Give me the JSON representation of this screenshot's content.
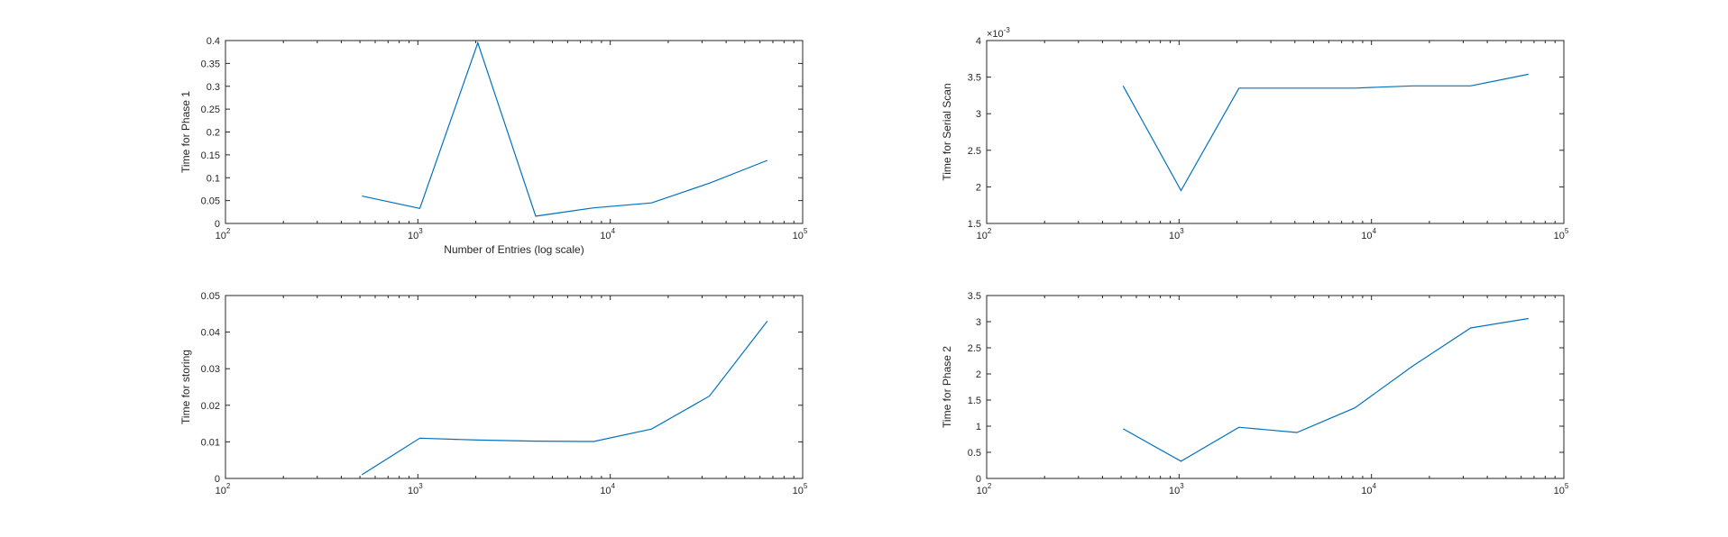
{
  "chart_data": [
    {
      "type": "line",
      "xscale": "log",
      "xlim": [
        100,
        100000
      ],
      "ylim": [
        0,
        0.4
      ],
      "xlabel": "Number of Entries (log scale)",
      "ylabel": "Time for Phase 1",
      "line_color": "#0072BD",
      "x": [
        512,
        1024,
        2048,
        4096,
        8192,
        16384,
        32768,
        65536
      ],
      "y": [
        0.06,
        0.033,
        0.395,
        0.016,
        0.034,
        0.045,
        0.088,
        0.138
      ],
      "xticks": [
        100,
        1000,
        10000,
        100000
      ],
      "xtick_labels": [
        {
          "base": "10",
          "exp": "2"
        },
        {
          "base": "10",
          "exp": "3"
        },
        {
          "base": "10",
          "exp": "4"
        },
        {
          "base": "10",
          "exp": "5"
        }
      ],
      "yticks": [
        0,
        0.05,
        0.1,
        0.15,
        0.2,
        0.25,
        0.3,
        0.35,
        0.4
      ],
      "ytick_labels": [
        "0",
        "0.05",
        "0.1",
        "0.15",
        "0.2",
        "0.25",
        "0.3",
        "0.35",
        "0.4"
      ]
    },
    {
      "type": "line",
      "xscale": "log",
      "xlim": [
        100,
        100000
      ],
      "ylim": [
        1.5,
        4
      ],
      "xlabel": "",
      "ylabel": "Time for Serial Scan",
      "y_exponent": {
        "base": "×10",
        "exp": "-3"
      },
      "line_color": "#0072BD",
      "x": [
        512,
        1024,
        2048,
        4096,
        8192,
        16384,
        32768,
        65536
      ],
      "y": [
        3.38,
        1.95,
        3.35,
        3.35,
        3.35,
        3.38,
        3.38,
        3.54
      ],
      "xticks": [
        100,
        1000,
        10000,
        100000
      ],
      "xtick_labels": [
        {
          "base": "10",
          "exp": "2"
        },
        {
          "base": "10",
          "exp": "3"
        },
        {
          "base": "10",
          "exp": "4"
        },
        {
          "base": "10",
          "exp": "5"
        }
      ],
      "yticks": [
        1.5,
        2,
        2.5,
        3,
        3.5,
        4
      ],
      "ytick_labels": [
        "1.5",
        "2",
        "2.5",
        "3",
        "3.5",
        "4"
      ]
    },
    {
      "type": "line",
      "xscale": "log",
      "xlim": [
        100,
        100000
      ],
      "ylim": [
        0,
        0.05
      ],
      "xlabel": "",
      "ylabel": "Time for storing",
      "line_color": "#0072BD",
      "x": [
        512,
        1024,
        2048,
        4096,
        8192,
        16384,
        32768,
        65536
      ],
      "y": [
        0.001,
        0.011,
        0.0105,
        0.0102,
        0.0101,
        0.0135,
        0.0225,
        0.043
      ],
      "xticks": [
        100,
        1000,
        10000,
        100000
      ],
      "xtick_labels": [
        {
          "base": "10",
          "exp": "2"
        },
        {
          "base": "10",
          "exp": "3"
        },
        {
          "base": "10",
          "exp": "4"
        },
        {
          "base": "10",
          "exp": "5"
        }
      ],
      "yticks": [
        0,
        0.01,
        0.02,
        0.03,
        0.04,
        0.05
      ],
      "ytick_labels": [
        "0",
        "0.01",
        "0.02",
        "0.03",
        "0.04",
        "0.05"
      ]
    },
    {
      "type": "line",
      "xscale": "log",
      "xlim": [
        100,
        100000
      ],
      "ylim": [
        0,
        3.5
      ],
      "xlabel": "",
      "ylabel": "Time for Phase 2",
      "line_color": "#0072BD",
      "x": [
        512,
        1024,
        2048,
        4096,
        8192,
        16384,
        32768,
        65536
      ],
      "y": [
        0.95,
        0.33,
        0.98,
        0.88,
        1.35,
        2.15,
        2.88,
        3.06
      ],
      "xticks": [
        100,
        1000,
        10000,
        100000
      ],
      "xtick_labels": [
        {
          "base": "10",
          "exp": "2"
        },
        {
          "base": "10",
          "exp": "3"
        },
        {
          "base": "10",
          "exp": "4"
        },
        {
          "base": "10",
          "exp": "5"
        }
      ],
      "yticks": [
        0,
        0.5,
        1,
        1.5,
        2,
        2.5,
        3,
        3.5
      ],
      "ytick_labels": [
        "0",
        "0.5",
        "1",
        "1.5",
        "2",
        "2.5",
        "3",
        "3.5"
      ]
    }
  ]
}
